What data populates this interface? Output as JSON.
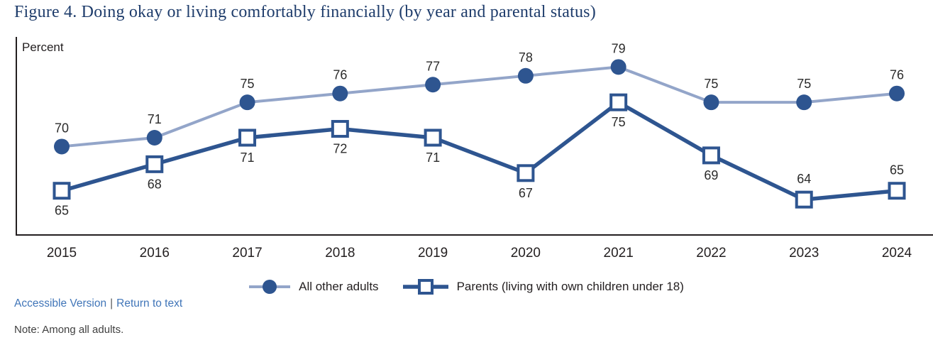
{
  "title": "Figure 4. Doing okay or living comfortably financially (by year and parental status)",
  "colors": {
    "dark_blue": "#2E5590",
    "light_blue": "#93A5C9",
    "title": "#1E3C6B",
    "link": "#4075B8",
    "axis": "#231F20",
    "label_text": "#2B2B2B",
    "note": "#404040",
    "marker_fill_white": "#FFFFFF"
  },
  "chart_data": {
    "type": "line",
    "title": "Doing okay or living comfortably financially (by year and parental status)",
    "ylabel": "Percent",
    "xlabel": "",
    "ylim": [
      60,
      82.4
    ],
    "grid": false,
    "legend_position": "bottom",
    "value_labels_shown": true,
    "categories": [
      "2015",
      "2016",
      "2017",
      "2018",
      "2019",
      "2020",
      "2021",
      "2022",
      "2023",
      "2024"
    ],
    "series": [
      {
        "name": "All other adults",
        "marker": "circle",
        "line_color": "#93A5C9",
        "line_width": 4,
        "marker_color": "#2E5590",
        "values": [
          70,
          71,
          75,
          76,
          77,
          78,
          79,
          75,
          75,
          76
        ],
        "label_positions": [
          "above",
          "above",
          "above",
          "above",
          "above",
          "above",
          "above",
          "above",
          "above",
          "above"
        ]
      },
      {
        "name": "Parents (living with own children under 18)",
        "marker": "square",
        "line_color": "#2E5590",
        "line_width": 5.5,
        "marker_fill": "#FFFFFF",
        "marker_color": "#2E5590",
        "values": [
          65,
          68,
          71,
          72,
          71,
          67,
          75,
          69,
          64,
          65
        ],
        "label_positions": [
          "below",
          "below",
          "below",
          "below",
          "below",
          "below",
          "below",
          "below",
          "above",
          "above"
        ]
      }
    ]
  },
  "footer": {
    "accessible_version": "Accessible Version",
    "separator": "|",
    "return_to_text": "Return to text",
    "note": "Note: Among all adults."
  }
}
